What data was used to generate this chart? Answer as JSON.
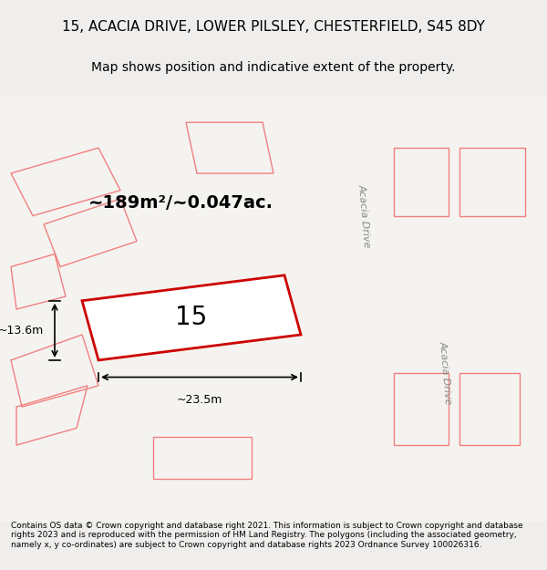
{
  "title_line1": "15, ACACIA DRIVE, LOWER PILSLEY, CHESTERFIELD, S45 8DY",
  "title_line2": "Map shows position and indicative extent of the property.",
  "area_text": "~189m²/~0.047ac.",
  "property_number": "15",
  "dim_width": "~23.5m",
  "dim_height": "~13.6m",
  "footer_text": "Contains OS data © Crown copyright and database right 2021. This information is subject to Crown copyright and database rights 2023 and is reproduced with the permission of HM Land Registry. The polygons (including the associated geometry, namely x, y co-ordinates) are subject to Crown copyright and database rights 2023 Ordnance Survey 100026316.",
  "bg_color": "#f0eeec",
  "map_bg": "#f5f3f0",
  "property_fill": "#f5f3f0",
  "property_edge": "#cc0000",
  "neighbor_edge": "#f08080",
  "road_label1": "Acacia Drive",
  "road_label2": "Acacia Drive",
  "title_fontsize": 11,
  "subtitle_fontsize": 10
}
